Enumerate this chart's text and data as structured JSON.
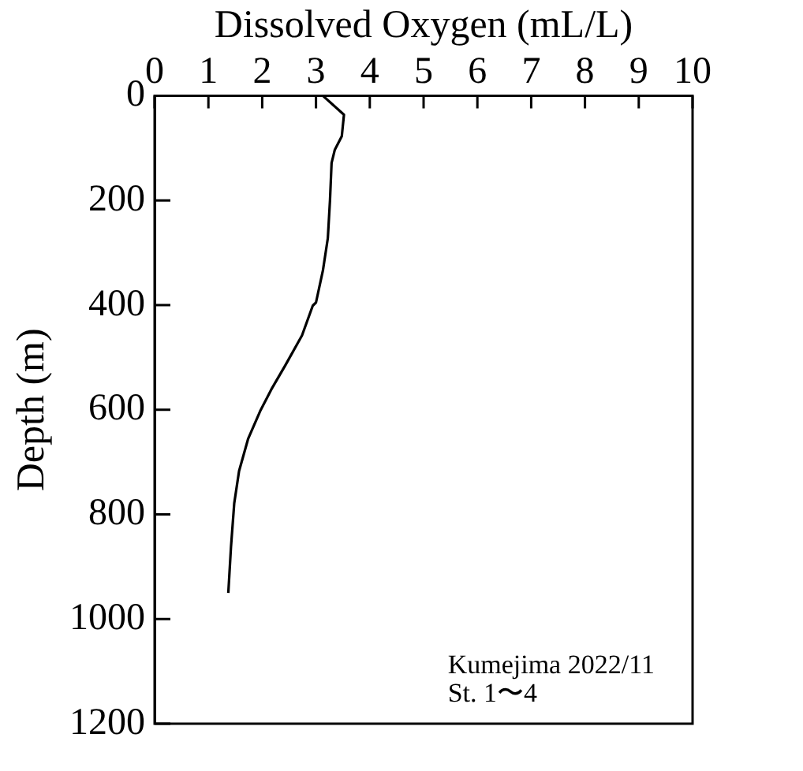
{
  "chart_data": {
    "type": "line",
    "xlabel": "Dissolved Oxygen (mL/L)",
    "ylabel": "Depth (m)",
    "x": [
      3.13,
      3.52,
      3.48,
      3.35,
      3.29,
      3.26,
      3.22,
      3.13,
      3.0,
      2.94,
      2.74,
      2.43,
      2.17,
      1.96,
      1.74,
      1.57,
      1.48,
      1.42,
      1.37
    ],
    "series": [
      {
        "color": "#000000",
        "values": [
          0,
          36,
          77,
          103,
          128,
          200,
          272,
          333,
          395,
          401,
          458,
          515,
          561,
          603,
          655,
          717,
          779,
          862,
          950
        ]
      }
    ],
    "xlim": [
      0,
      10
    ],
    "xticks": [
      0,
      1,
      2,
      3,
      4,
      5,
      6,
      7,
      8,
      9,
      10
    ],
    "ylim": [
      1200,
      0
    ],
    "yticks": [
      0,
      200,
      400,
      600,
      800,
      1000,
      1200
    ],
    "grid": false,
    "legend": false,
    "marker": "none",
    "line_style": "solid",
    "annotations": [
      "Kumejima 2022/11",
      "St. 1〜4"
    ]
  }
}
